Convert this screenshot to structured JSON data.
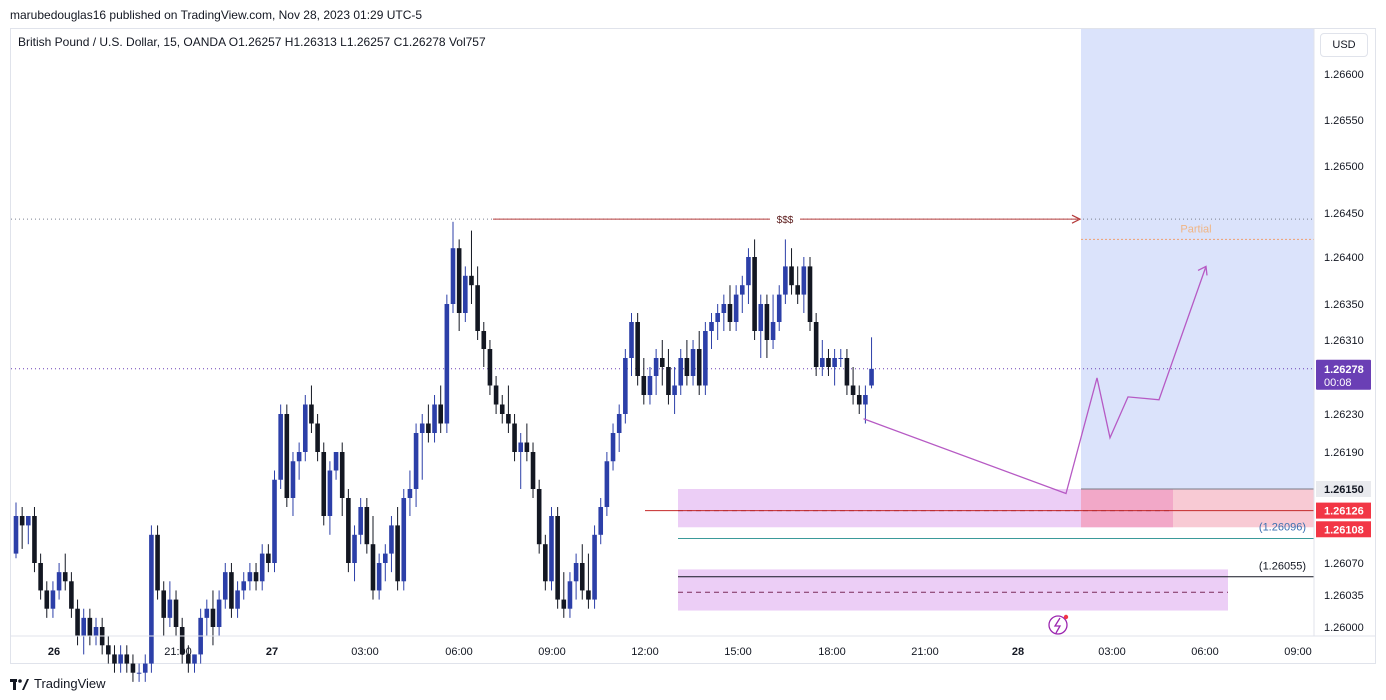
{
  "header": {
    "published_text": "marubedouglas16 published on TradingView.com, Nov 28, 2023 01:29 UTC-5"
  },
  "symbol_line": "British Pound / U.S. Dollar, 15, OANDA  O1.26257  H1.26313  L1.26257  C1.26278  Vol757",
  "currency_button": "USD",
  "footer": {
    "brand": "TradingView",
    "icon": "tradingview-logo-icon"
  },
  "colors": {
    "bull": "#2c3fa8",
    "bear": "#131722",
    "zone": "#e9c6f5",
    "projection_bg": "#dbe3fb",
    "stop_zone": "#f5b8c6",
    "target_line": "#b43a3a",
    "current_price_label": "#6a3fb5",
    "stop_label": "#f23645",
    "path": "#b65ac4"
  },
  "chart_data": {
    "type": "candlestick",
    "instrument": "British Pound / U.S. Dollar",
    "timeframe": "15",
    "ohlcv_readout": {
      "open": 1.26257,
      "high": 1.26313,
      "low": 1.26257,
      "close": 1.26278,
      "volume": 757
    },
    "y_ticks": [
      "1.26600",
      "1.26550",
      "1.26500",
      "1.26450",
      "1.26400",
      "1.26350",
      "1.26310",
      "1.26230",
      "1.26190",
      "1.26070",
      "1.26035",
      "1.26000"
    ],
    "x_ticks": [
      "26",
      "21:00",
      "27",
      "03:00",
      "06:00",
      "09:00",
      "12:00",
      "15:00",
      "18:00",
      "21:00",
      "28",
      "03:00",
      "06:00",
      "09:00"
    ],
    "bold_x_ticks": [
      "26",
      "27",
      "28"
    ],
    "price_labels": [
      {
        "text": "1.26278",
        "sub": "00:08",
        "value": 1.26278,
        "kind": "current"
      },
      {
        "text": "1.26150",
        "value": 1.2615,
        "kind": "grey"
      },
      {
        "text": "1.26126",
        "value": 1.26126,
        "kind": "red"
      },
      {
        "text": "1.26108",
        "value": 1.26108,
        "kind": "red"
      }
    ],
    "annotations": {
      "liquidity_label": "$$$",
      "liquidity_price": 1.26443,
      "partial_label": "Partial",
      "partial_price": 1.2642,
      "level1_label": "(1.26096)",
      "level1_price": 1.26096,
      "level2_label": "(1.26055)",
      "level2_price": 1.26055
    },
    "demand_zones": [
      {
        "top": 1.2615,
        "bottom": 1.26108,
        "mid": 1.26126
      },
      {
        "top": 1.26063,
        "bottom": 1.26018,
        "mid": 1.26038
      }
    ],
    "projection_path": [
      1.26225,
      1.26145,
      1.26268,
      1.26205,
      1.26248,
      1.26245,
      1.2639
    ],
    "candles": [
      {
        "o": 1.2608,
        "h": 1.26135,
        "l": 1.26075,
        "c": 1.2612
      },
      {
        "o": 1.2612,
        "h": 1.2613,
        "l": 1.26085,
        "c": 1.2611
      },
      {
        "o": 1.2611,
        "h": 1.2612,
        "l": 1.2609,
        "c": 1.2612
      },
      {
        "o": 1.2612,
        "h": 1.2613,
        "l": 1.2606,
        "c": 1.2607
      },
      {
        "o": 1.2607,
        "h": 1.2608,
        "l": 1.2603,
        "c": 1.2604
      },
      {
        "o": 1.2604,
        "h": 1.2605,
        "l": 1.2601,
        "c": 1.2602
      },
      {
        "o": 1.2602,
        "h": 1.2605,
        "l": 1.2601,
        "c": 1.2604
      },
      {
        "o": 1.2604,
        "h": 1.2607,
        "l": 1.2603,
        "c": 1.2606
      },
      {
        "o": 1.2606,
        "h": 1.2608,
        "l": 1.2604,
        "c": 1.2605
      },
      {
        "o": 1.2605,
        "h": 1.2606,
        "l": 1.2601,
        "c": 1.2602
      },
      {
        "o": 1.2602,
        "h": 1.2603,
        "l": 1.2598,
        "c": 1.2599
      },
      {
        "o": 1.2599,
        "h": 1.2602,
        "l": 1.2597,
        "c": 1.2601
      },
      {
        "o": 1.2601,
        "h": 1.2602,
        "l": 1.2598,
        "c": 1.2599
      },
      {
        "o": 1.2599,
        "h": 1.2601,
        "l": 1.2598,
        "c": 1.26
      },
      {
        "o": 1.26,
        "h": 1.2601,
        "l": 1.2597,
        "c": 1.2598
      },
      {
        "o": 1.2598,
        "h": 1.2599,
        "l": 1.2596,
        "c": 1.2597
      },
      {
        "o": 1.2597,
        "h": 1.2598,
        "l": 1.2595,
        "c": 1.2596
      },
      {
        "o": 1.2596,
        "h": 1.2598,
        "l": 1.2595,
        "c": 1.2597
      },
      {
        "o": 1.2597,
        "h": 1.2598,
        "l": 1.2595,
        "c": 1.2596
      },
      {
        "o": 1.2596,
        "h": 1.2597,
        "l": 1.2594,
        "c": 1.2595
      },
      {
        "o": 1.2595,
        "h": 1.2596,
        "l": 1.2594,
        "c": 1.2595
      },
      {
        "o": 1.2595,
        "h": 1.2597,
        "l": 1.2594,
        "c": 1.2596
      },
      {
        "o": 1.2596,
        "h": 1.2611,
        "l": 1.2595,
        "c": 1.261
      },
      {
        "o": 1.261,
        "h": 1.2611,
        "l": 1.2603,
        "c": 1.2604
      },
      {
        "o": 1.2604,
        "h": 1.2605,
        "l": 1.2599,
        "c": 1.2601
      },
      {
        "o": 1.2601,
        "h": 1.2605,
        "l": 1.26,
        "c": 1.2603
      },
      {
        "o": 1.2603,
        "h": 1.2604,
        "l": 1.2599,
        "c": 1.26
      },
      {
        "o": 1.26,
        "h": 1.2601,
        "l": 1.2596,
        "c": 1.2597
      },
      {
        "o": 1.2597,
        "h": 1.2598,
        "l": 1.2595,
        "c": 1.2596
      },
      {
        "o": 1.2596,
        "h": 1.2597,
        "l": 1.2595,
        "c": 1.2597
      },
      {
        "o": 1.2597,
        "h": 1.2602,
        "l": 1.2596,
        "c": 1.2601
      },
      {
        "o": 1.2601,
        "h": 1.2603,
        "l": 1.2599,
        "c": 1.2602
      },
      {
        "o": 1.2602,
        "h": 1.2604,
        "l": 1.2598,
        "c": 1.26
      },
      {
        "o": 1.26,
        "h": 1.2604,
        "l": 1.2599,
        "c": 1.2603
      },
      {
        "o": 1.2603,
        "h": 1.2607,
        "l": 1.2602,
        "c": 1.2606
      },
      {
        "o": 1.2606,
        "h": 1.2607,
        "l": 1.2601,
        "c": 1.2602
      },
      {
        "o": 1.2602,
        "h": 1.2605,
        "l": 1.2601,
        "c": 1.2604
      },
      {
        "o": 1.2604,
        "h": 1.2606,
        "l": 1.2603,
        "c": 1.2605
      },
      {
        "o": 1.2605,
        "h": 1.2607,
        "l": 1.2604,
        "c": 1.2606
      },
      {
        "o": 1.2606,
        "h": 1.2607,
        "l": 1.2604,
        "c": 1.2605
      },
      {
        "o": 1.2605,
        "h": 1.2609,
        "l": 1.2604,
        "c": 1.2608
      },
      {
        "o": 1.2608,
        "h": 1.2609,
        "l": 1.2606,
        "c": 1.2607
      },
      {
        "o": 1.2607,
        "h": 1.2617,
        "l": 1.2606,
        "c": 1.2616
      },
      {
        "o": 1.2616,
        "h": 1.2624,
        "l": 1.2615,
        "c": 1.2623
      },
      {
        "o": 1.2623,
        "h": 1.2624,
        "l": 1.2613,
        "c": 1.2614
      },
      {
        "o": 1.2614,
        "h": 1.2619,
        "l": 1.2612,
        "c": 1.2618
      },
      {
        "o": 1.2618,
        "h": 1.262,
        "l": 1.2616,
        "c": 1.2619
      },
      {
        "o": 1.2619,
        "h": 1.2625,
        "l": 1.2618,
        "c": 1.2624
      },
      {
        "o": 1.2624,
        "h": 1.2626,
        "l": 1.2621,
        "c": 1.2622
      },
      {
        "o": 1.2622,
        "h": 1.2623,
        "l": 1.2618,
        "c": 1.2619
      },
      {
        "o": 1.2619,
        "h": 1.262,
        "l": 1.2611,
        "c": 1.2612
      },
      {
        "o": 1.2612,
        "h": 1.2618,
        "l": 1.261,
        "c": 1.2617
      },
      {
        "o": 1.2617,
        "h": 1.2619,
        "l": 1.2616,
        "c": 1.2619
      },
      {
        "o": 1.2619,
        "h": 1.262,
        "l": 1.2612,
        "c": 1.2614
      },
      {
        "o": 1.2614,
        "h": 1.2615,
        "l": 1.2606,
        "c": 1.2607
      },
      {
        "o": 1.2607,
        "h": 1.2611,
        "l": 1.2605,
        "c": 1.261
      },
      {
        "o": 1.261,
        "h": 1.2614,
        "l": 1.2609,
        "c": 1.2613
      },
      {
        "o": 1.2613,
        "h": 1.2614,
        "l": 1.2608,
        "c": 1.2609
      },
      {
        "o": 1.2609,
        "h": 1.2612,
        "l": 1.2603,
        "c": 1.2604
      },
      {
        "o": 1.2604,
        "h": 1.2608,
        "l": 1.2603,
        "c": 1.2607
      },
      {
        "o": 1.2607,
        "h": 1.2609,
        "l": 1.2605,
        "c": 1.2608
      },
      {
        "o": 1.2608,
        "h": 1.2612,
        "l": 1.2606,
        "c": 1.2611
      },
      {
        "o": 1.2611,
        "h": 1.2613,
        "l": 1.2604,
        "c": 1.2605
      },
      {
        "o": 1.2605,
        "h": 1.2615,
        "l": 1.2604,
        "c": 1.2614
      },
      {
        "o": 1.2614,
        "h": 1.2617,
        "l": 1.2612,
        "c": 1.2615
      },
      {
        "o": 1.2615,
        "h": 1.2622,
        "l": 1.2613,
        "c": 1.2621
      },
      {
        "o": 1.2621,
        "h": 1.2623,
        "l": 1.2616,
        "c": 1.2622
      },
      {
        "o": 1.2622,
        "h": 1.2624,
        "l": 1.262,
        "c": 1.2621
      },
      {
        "o": 1.2621,
        "h": 1.2625,
        "l": 1.262,
        "c": 1.2624
      },
      {
        "o": 1.2624,
        "h": 1.2626,
        "l": 1.2621,
        "c": 1.2622
      },
      {
        "o": 1.2622,
        "h": 1.2636,
        "l": 1.2621,
        "c": 1.2635
      },
      {
        "o": 1.2635,
        "h": 1.2644,
        "l": 1.2634,
        "c": 1.2641
      },
      {
        "o": 1.2641,
        "h": 1.2642,
        "l": 1.2632,
        "c": 1.2634
      },
      {
        "o": 1.2634,
        "h": 1.2639,
        "l": 1.2633,
        "c": 1.2638
      },
      {
        "o": 1.2638,
        "h": 1.2643,
        "l": 1.2635,
        "c": 1.2637
      },
      {
        "o": 1.2637,
        "h": 1.2639,
        "l": 1.2631,
        "c": 1.2632
      },
      {
        "o": 1.2632,
        "h": 1.2633,
        "l": 1.2628,
        "c": 1.263
      },
      {
        "o": 1.263,
        "h": 1.2631,
        "l": 1.2625,
        "c": 1.2626
      },
      {
        "o": 1.2626,
        "h": 1.2627,
        "l": 1.2623,
        "c": 1.2624
      },
      {
        "o": 1.2624,
        "h": 1.2625,
        "l": 1.2622,
        "c": 1.2623
      },
      {
        "o": 1.2623,
        "h": 1.2626,
        "l": 1.2621,
        "c": 1.2622
      },
      {
        "o": 1.2622,
        "h": 1.2623,
        "l": 1.2618,
        "c": 1.2619
      },
      {
        "o": 1.2619,
        "h": 1.2621,
        "l": 1.2615,
        "c": 1.262
      },
      {
        "o": 1.262,
        "h": 1.2622,
        "l": 1.2618,
        "c": 1.2619
      },
      {
        "o": 1.2619,
        "h": 1.262,
        "l": 1.2614,
        "c": 1.2615
      },
      {
        "o": 1.2615,
        "h": 1.2616,
        "l": 1.2608,
        "c": 1.2609
      },
      {
        "o": 1.2609,
        "h": 1.261,
        "l": 1.2604,
        "c": 1.2605
      },
      {
        "o": 1.2605,
        "h": 1.2613,
        "l": 1.2604,
        "c": 1.2612
      },
      {
        "o": 1.2612,
        "h": 1.2613,
        "l": 1.2602,
        "c": 1.2603
      },
      {
        "o": 1.2603,
        "h": 1.2606,
        "l": 1.2601,
        "c": 1.2602
      },
      {
        "o": 1.2602,
        "h": 1.2606,
        "l": 1.2601,
        "c": 1.2605
      },
      {
        "o": 1.2605,
        "h": 1.2608,
        "l": 1.2603,
        "c": 1.2607
      },
      {
        "o": 1.2607,
        "h": 1.2609,
        "l": 1.2603,
        "c": 1.2604
      },
      {
        "o": 1.2604,
        "h": 1.2608,
        "l": 1.2602,
        "c": 1.2603
      },
      {
        "o": 1.2603,
        "h": 1.2611,
        "l": 1.2602,
        "c": 1.261
      },
      {
        "o": 1.261,
        "h": 1.2614,
        "l": 1.2609,
        "c": 1.2613
      },
      {
        "o": 1.2613,
        "h": 1.2619,
        "l": 1.2612,
        "c": 1.2618
      },
      {
        "o": 1.2618,
        "h": 1.2622,
        "l": 1.2617,
        "c": 1.2621
      },
      {
        "o": 1.2621,
        "h": 1.2624,
        "l": 1.2619,
        "c": 1.2623
      },
      {
        "o": 1.2623,
        "h": 1.263,
        "l": 1.2622,
        "c": 1.2629
      },
      {
        "o": 1.2629,
        "h": 1.2634,
        "l": 1.2627,
        "c": 1.2633
      },
      {
        "o": 1.2633,
        "h": 1.2634,
        "l": 1.2626,
        "c": 1.2627
      },
      {
        "o": 1.2627,
        "h": 1.2629,
        "l": 1.2624,
        "c": 1.2625
      },
      {
        "o": 1.2625,
        "h": 1.2628,
        "l": 1.2624,
        "c": 1.2627
      },
      {
        "o": 1.2627,
        "h": 1.263,
        "l": 1.2625,
        "c": 1.2629
      },
      {
        "o": 1.2629,
        "h": 1.2631,
        "l": 1.2626,
        "c": 1.2628
      },
      {
        "o": 1.2628,
        "h": 1.263,
        "l": 1.2624,
        "c": 1.2625
      },
      {
        "o": 1.2625,
        "h": 1.2628,
        "l": 1.2623,
        "c": 1.2626
      },
      {
        "o": 1.2626,
        "h": 1.263,
        "l": 1.2625,
        "c": 1.2629
      },
      {
        "o": 1.2629,
        "h": 1.2631,
        "l": 1.2626,
        "c": 1.2627
      },
      {
        "o": 1.2627,
        "h": 1.2631,
        "l": 1.2626,
        "c": 1.263
      },
      {
        "o": 1.263,
        "h": 1.2632,
        "l": 1.2625,
        "c": 1.2626
      },
      {
        "o": 1.2626,
        "h": 1.2633,
        "l": 1.2625,
        "c": 1.2632
      },
      {
        "o": 1.2632,
        "h": 1.2634,
        "l": 1.263,
        "c": 1.2633
      },
      {
        "o": 1.2633,
        "h": 1.2635,
        "l": 1.2631,
        "c": 1.2634
      },
      {
        "o": 1.2634,
        "h": 1.2636,
        "l": 1.2632,
        "c": 1.2635
      },
      {
        "o": 1.2635,
        "h": 1.2637,
        "l": 1.2632,
        "c": 1.2633
      },
      {
        "o": 1.2633,
        "h": 1.2637,
        "l": 1.2632,
        "c": 1.2636
      },
      {
        "o": 1.2636,
        "h": 1.2638,
        "l": 1.2634,
        "c": 1.2637
      },
      {
        "o": 1.2637,
        "h": 1.2641,
        "l": 1.2635,
        "c": 1.264
      },
      {
        "o": 1.264,
        "h": 1.2642,
        "l": 1.2631,
        "c": 1.2632
      },
      {
        "o": 1.2632,
        "h": 1.2636,
        "l": 1.2629,
        "c": 1.2635
      },
      {
        "o": 1.2635,
        "h": 1.2636,
        "l": 1.2629,
        "c": 1.2631
      },
      {
        "o": 1.2631,
        "h": 1.2636,
        "l": 1.263,
        "c": 1.2633
      },
      {
        "o": 1.2633,
        "h": 1.2637,
        "l": 1.2632,
        "c": 1.2636
      },
      {
        "o": 1.2636,
        "h": 1.2642,
        "l": 1.2635,
        "c": 1.2639
      },
      {
        "o": 1.2639,
        "h": 1.2641,
        "l": 1.2636,
        "c": 1.2637
      },
      {
        "o": 1.2637,
        "h": 1.2639,
        "l": 1.2635,
        "c": 1.2636
      },
      {
        "o": 1.2636,
        "h": 1.264,
        "l": 1.2634,
        "c": 1.2639
      },
      {
        "o": 1.2639,
        "h": 1.264,
        "l": 1.2632,
        "c": 1.2633
      },
      {
        "o": 1.2633,
        "h": 1.2634,
        "l": 1.2627,
        "c": 1.2628
      },
      {
        "o": 1.2628,
        "h": 1.2631,
        "l": 1.2627,
        "c": 1.2629
      },
      {
        "o": 1.2629,
        "h": 1.263,
        "l": 1.2627,
        "c": 1.2628
      },
      {
        "o": 1.2628,
        "h": 1.263,
        "l": 1.2626,
        "c": 1.2629
      },
      {
        "o": 1.2629,
        "h": 1.263,
        "l": 1.2628,
        "c": 1.2629
      },
      {
        "o": 1.2629,
        "h": 1.263,
        "l": 1.2625,
        "c": 1.2626
      },
      {
        "o": 1.2626,
        "h": 1.2628,
        "l": 1.2624,
        "c": 1.2625
      },
      {
        "o": 1.2625,
        "h": 1.2626,
        "l": 1.2623,
        "c": 1.2624
      },
      {
        "o": 1.2624,
        "h": 1.2626,
        "l": 1.2622,
        "c": 1.2625
      },
      {
        "o": 1.2626,
        "h": 1.26313,
        "l": 1.26257,
        "c": 1.26278
      }
    ]
  }
}
